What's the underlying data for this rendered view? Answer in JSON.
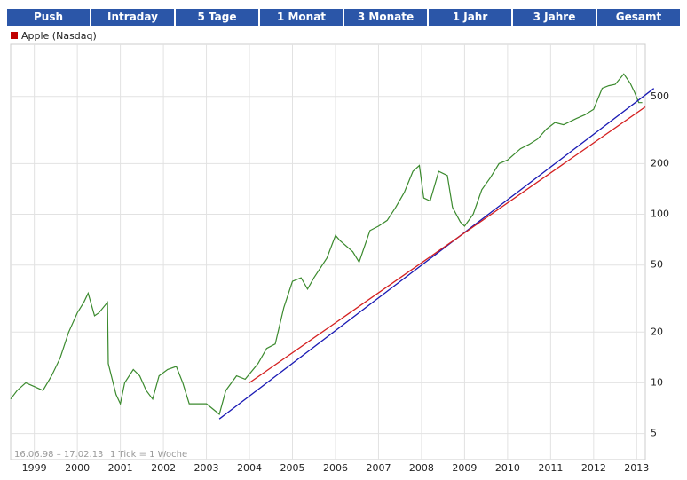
{
  "tabs": [
    "Push",
    "Intraday",
    "5 Tage",
    "1 Monat",
    "3 Monate",
    "1 Jahr",
    "3 Jahre",
    "Gesamt"
  ],
  "chart_data": {
    "type": "line",
    "date_range": "16.06.98 – 17.02.13",
    "tick_note": "1 Tick = 1 Woche",
    "log_y": true,
    "grid": true,
    "xlim": [
      1998.45,
      2013.2
    ],
    "xticks": [
      1999,
      2000,
      2001,
      2002,
      2003,
      2004,
      2005,
      2006,
      2007,
      2008,
      2009,
      2010,
      2011,
      2012,
      2013
    ],
    "ylim": [
      3.5,
      1020
    ],
    "yticks": [
      5,
      10,
      20,
      50,
      100,
      200,
      500
    ],
    "series": [
      {
        "name": "Apple (Nasdaq)",
        "color": "#3b8a2e",
        "legend_color": "#c00000",
        "x": [
          1998.45,
          1998.6,
          1998.8,
          1999.0,
          1999.2,
          1999.4,
          1999.6,
          1999.8,
          2000.0,
          2000.15,
          2000.25,
          2000.4,
          2000.5,
          2000.7,
          2000.72,
          2000.9,
          2001.0,
          2001.1,
          2001.3,
          2001.45,
          2001.6,
          2001.75,
          2001.9,
          2002.1,
          2002.3,
          2002.45,
          2002.6,
          2002.8,
          2003.0,
          2003.3,
          2003.45,
          2003.7,
          2003.9,
          2004.2,
          2004.4,
          2004.6,
          2004.8,
          2005.0,
          2005.2,
          2005.35,
          2005.5,
          2005.8,
          2006.0,
          2006.1,
          2006.4,
          2006.55,
          2006.8,
          2007.0,
          2007.2,
          2007.4,
          2007.6,
          2007.8,
          2007.95,
          2008.05,
          2008.2,
          2008.4,
          2008.6,
          2008.72,
          2008.9,
          2009.0,
          2009.2,
          2009.4,
          2009.6,
          2009.8,
          2010.0,
          2010.3,
          2010.5,
          2010.7,
          2010.9,
          2011.1,
          2011.3,
          2011.6,
          2011.8,
          2012.0,
          2012.2,
          2012.35,
          2012.5,
          2012.7,
          2012.85,
          2012.95,
          2013.05,
          2013.13
        ],
        "values": [
          8,
          9,
          10,
          9.5,
          9,
          11,
          14,
          20,
          26,
          30,
          34,
          25,
          26,
          30,
          13,
          8.5,
          7.5,
          10,
          12,
          11,
          9,
          8,
          11,
          12,
          12.5,
          10,
          7.5,
          7.5,
          7.5,
          6.5,
          9,
          11,
          10.5,
          13,
          16,
          17,
          28,
          40,
          42,
          36,
          42,
          55,
          75,
          70,
          60,
          52,
          80,
          85,
          92,
          110,
          135,
          180,
          195,
          125,
          120,
          180,
          170,
          110,
          90,
          85,
          100,
          140,
          165,
          200,
          210,
          245,
          260,
          280,
          320,
          350,
          340,
          370,
          390,
          420,
          560,
          580,
          590,
          680,
          600,
          530,
          460,
          460
        ]
      }
    ],
    "trendlines": [
      {
        "color": "#1a1ab4",
        "x": [
          2003.3,
          2013.4
        ],
        "values": [
          6.1,
          558
        ]
      },
      {
        "color": "#d42020",
        "x": [
          2004.0,
          2013.2
        ],
        "values": [
          10,
          434
        ]
      }
    ]
  }
}
